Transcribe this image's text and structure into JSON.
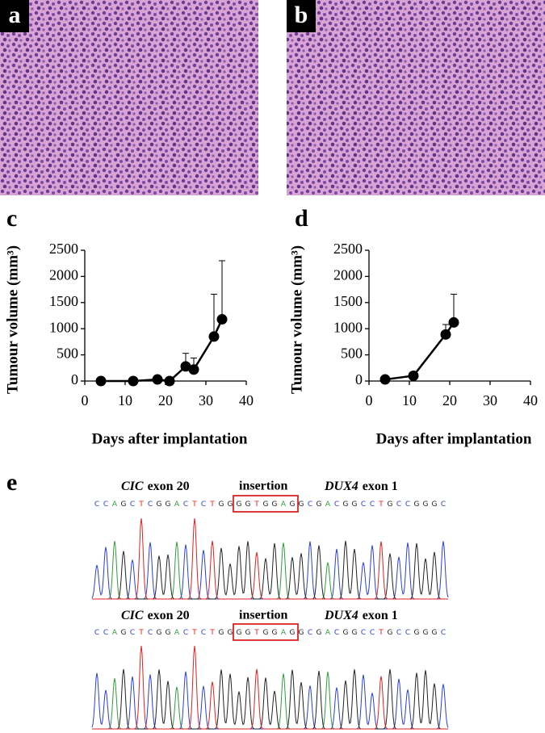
{
  "panel_labels": [
    "a",
    "b",
    "c",
    "d",
    "e"
  ],
  "chart_data": [
    {
      "type": "line",
      "xlabel": "Days after implantation",
      "ylabel": "Tumour volume (mm³)",
      "x": [
        4,
        12,
        18,
        21,
        25,
        27,
        32,
        34
      ],
      "values": [
        0,
        0,
        30,
        0,
        280,
        220,
        850,
        1180
      ],
      "errors": [
        0,
        0,
        0,
        0,
        250,
        220,
        810,
        1120
      ],
      "color": "#000000",
      "xlim": [
        0,
        40
      ],
      "xticks": [
        0,
        10,
        20,
        30,
        40
      ],
      "ylim": [
        0,
        2500
      ],
      "yticks": [
        0,
        500,
        1000,
        1500,
        2000,
        2500
      ]
    },
    {
      "type": "line",
      "xlabel": "Days after implantation",
      "ylabel": "Tumour volume (mm³)",
      "x": [
        4,
        11,
        19,
        21
      ],
      "values": [
        30,
        100,
        890,
        1120
      ],
      "errors": [
        0,
        0,
        190,
        540
      ],
      "color": "#000000",
      "xlim": [
        0,
        40
      ],
      "xticks": [
        0,
        10,
        20,
        30,
        40
      ],
      "ylim": [
        0,
        2500
      ],
      "yticks": [
        0,
        500,
        1000,
        1500,
        2000,
        2500
      ]
    }
  ],
  "sequencing": [
    {
      "gene1": "CIC",
      "exon1": "exon 20",
      "middle": "insertion",
      "gene2": "DUX4",
      "exon2": "exon 1",
      "sequence": "CCAGCTCGGACTCTGGGGTGGAGGCGACGGCCTGCCGGGC"
    },
    {
      "gene1": "CIC",
      "exon1": "exon 20",
      "middle": "insertion",
      "gene2": "DUX4",
      "exon2": "exon 1",
      "sequence": "CCAGCTCGGACTCTGGGGTGGAGGCGACGGCCTGCCGGGC"
    }
  ]
}
